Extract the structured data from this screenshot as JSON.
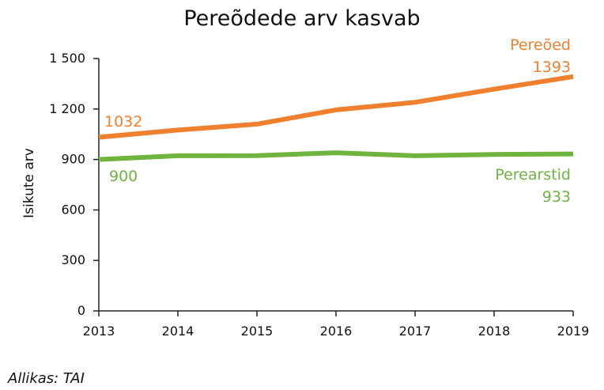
{
  "chart_data": {
    "type": "line",
    "title": "Pereõdede arv kasvab",
    "ylabel": "Isikute arv",
    "xlabel": "",
    "x": [
      2013,
      2014,
      2015,
      2016,
      2017,
      2018,
      2019
    ],
    "ylim": [
      0,
      1500
    ],
    "yticks": [
      0,
      300,
      600,
      900,
      1200,
      1500
    ],
    "ytick_labels": [
      "0",
      "300",
      "600",
      "900",
      "1 200",
      "1 500"
    ],
    "grid": false,
    "series": [
      {
        "name": "Pereõed",
        "color": "#f07f2e",
        "values": [
          1032,
          1075,
          1110,
          1195,
          1240,
          1318,
          1393
        ],
        "start_label": "1032",
        "end_label": "1393"
      },
      {
        "name": "Perearstid",
        "color": "#6eb43f",
        "values": [
          900,
          922,
          923,
          940,
          922,
          930,
          933
        ],
        "start_label": "900",
        "end_label": "933"
      }
    ]
  },
  "source": "Allikas: TAI"
}
